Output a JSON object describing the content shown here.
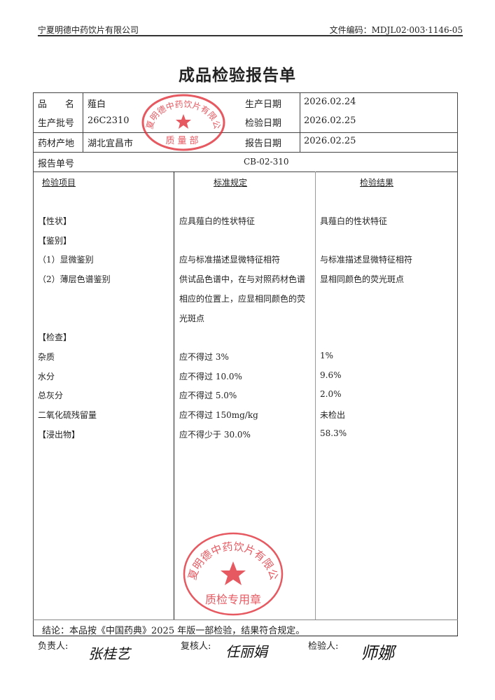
{
  "header": {
    "company": "宁夏明德中药饮片有限公司",
    "doc_code": "文件编码：MDJL02·003·1146-05"
  },
  "title": "成品检验报告单",
  "info": {
    "name_label": "品　　名",
    "name": "薤白",
    "batch_label": "生产批号",
    "batch": "26C2310",
    "origin_label": "药材产地",
    "origin": "湖北宜昌市",
    "prod_date_label": "生产日期",
    "prod_date": "2026.02.24",
    "test_date_label": "检验日期",
    "test_date": "2026.02.25",
    "report_date_label": "报告日期",
    "report_date": "2026.02.25",
    "report_no_label": "报告单号",
    "report_no": "CB-02-310"
  },
  "table": {
    "headers": [
      "检验项目",
      "标准规定",
      "检验结果"
    ],
    "rows": [
      {
        "item": "【性状】",
        "standard": "应具薤白的性状特征",
        "result": "具薤白的性状特征"
      },
      {
        "item": "【鉴别】",
        "standard": "",
        "result": ""
      },
      {
        "item": "（1）显微鉴别",
        "standard": "应与标准描述显微特征相符",
        "result": "与标准描述显微特征相符"
      },
      {
        "item": "（2）薄层色谱鉴别",
        "standard": "供试品色谱中，在与对照药材色谱",
        "result": "显相同颜色的荧光斑点"
      },
      {
        "item": "",
        "standard": "相应的位置上，应显相同颜色的荧",
        "result": ""
      },
      {
        "item": "",
        "standard": "光斑点",
        "result": ""
      },
      {
        "item": "【检查】",
        "standard": "",
        "result": ""
      },
      {
        "item": "杂质",
        "standard": "应不得过 3%",
        "result": "1%"
      },
      {
        "item": "水分",
        "standard": "应不得过 10.0%",
        "result": "9.6%"
      },
      {
        "item": "总灰分",
        "standard": "应不得过 5.0%",
        "result": "2.0%"
      },
      {
        "item": "二氧化硫残留量",
        "standard": "应不得过 150mg/kg",
        "result": "未检出"
      },
      {
        "item": "【浸出物】",
        "standard": "应不得少于 30.0%",
        "result": "58.3%"
      }
    ]
  },
  "conclusion": "结论：本品按《中国药典》2025 年版一部检验，结果符合规定。",
  "signatures": {
    "responsible_label": "负责人:",
    "responsible": "张桂艺",
    "reviewer_label": "复核人:",
    "reviewer": "任丽娟",
    "inspector_label": "检验人:",
    "inspector": "师娜"
  },
  "stamps": {
    "top": {
      "ring": "宁夏明德中药饮片有限公司",
      "center": "质量部"
    },
    "bottom": {
      "ring": "宁夏明德中药饮片有限公司",
      "center": "质检专用章"
    },
    "color": "#e0303a"
  }
}
